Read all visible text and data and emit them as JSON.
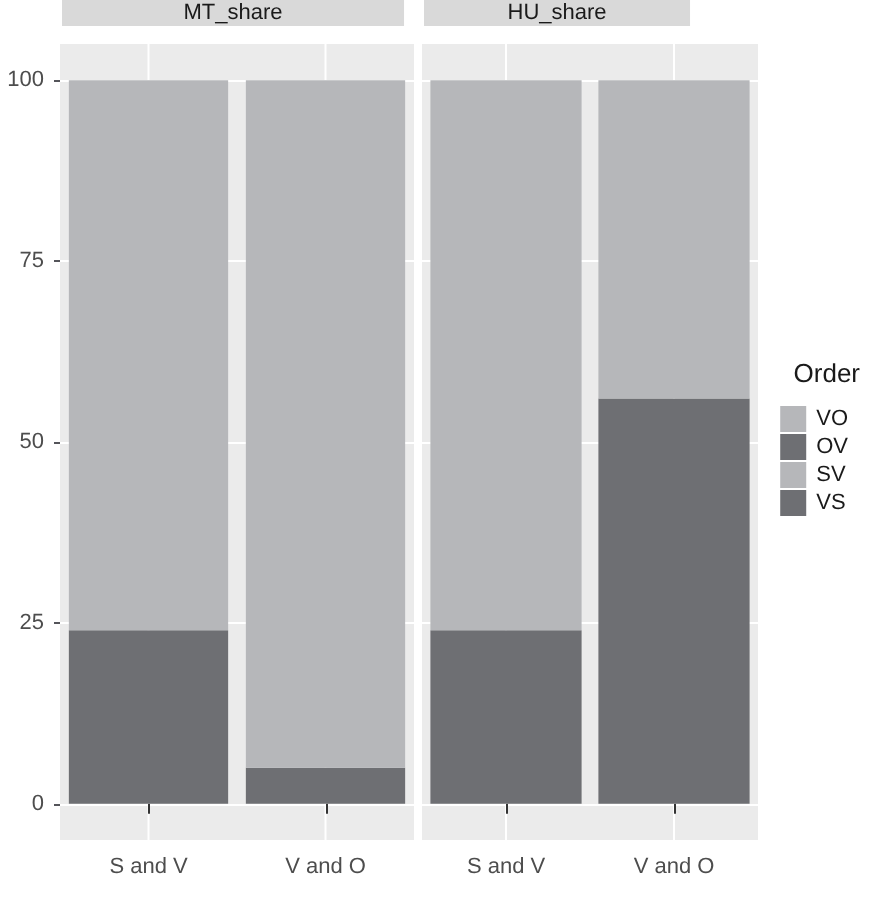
{
  "chart_data": [
    {
      "type": "bar",
      "title": "MT_share",
      "categories": [
        "S and V",
        "V and O"
      ],
      "stacked": true,
      "ylim": [
        -5,
        105
      ],
      "yticks": [
        0,
        25,
        50,
        75,
        100
      ],
      "grid": true,
      "legend": false,
      "series": [
        {
          "color": "#6e6f73",
          "values": [
            24,
            null
          ]
        },
        {
          "color": "#b6b7ba",
          "values": [
            76,
            null
          ]
        },
        {
          "color": "#6e6f73",
          "values": [
            null,
            5
          ]
        },
        {
          "color": "#b6b7ba",
          "values": [
            null,
            95
          ]
        }
      ]
    },
    {
      "type": "bar",
      "title": "HU_share",
      "categories": [
        "S and V",
        "V and O"
      ],
      "stacked": true,
      "ylim": [
        -5,
        105
      ],
      "yticks": [
        0,
        25,
        50,
        75,
        100
      ],
      "grid": true,
      "legend": "right",
      "legend_title": "Order",
      "tick_labels": "x",
      "series": [
        {
          "name": "VS",
          "color": "#6e6f73",
          "values": [
            24,
            null
          ]
        },
        {
          "name": "SV",
          "color": "#b6b7ba",
          "values": [
            76,
            null
          ]
        },
        {
          "name": "OV",
          "color": "#6e6f73",
          "values": [
            null,
            56
          ]
        },
        {
          "name": "VO",
          "color": "#b6b7ba",
          "values": [
            null,
            44
          ]
        }
      ]
    }
  ]
}
